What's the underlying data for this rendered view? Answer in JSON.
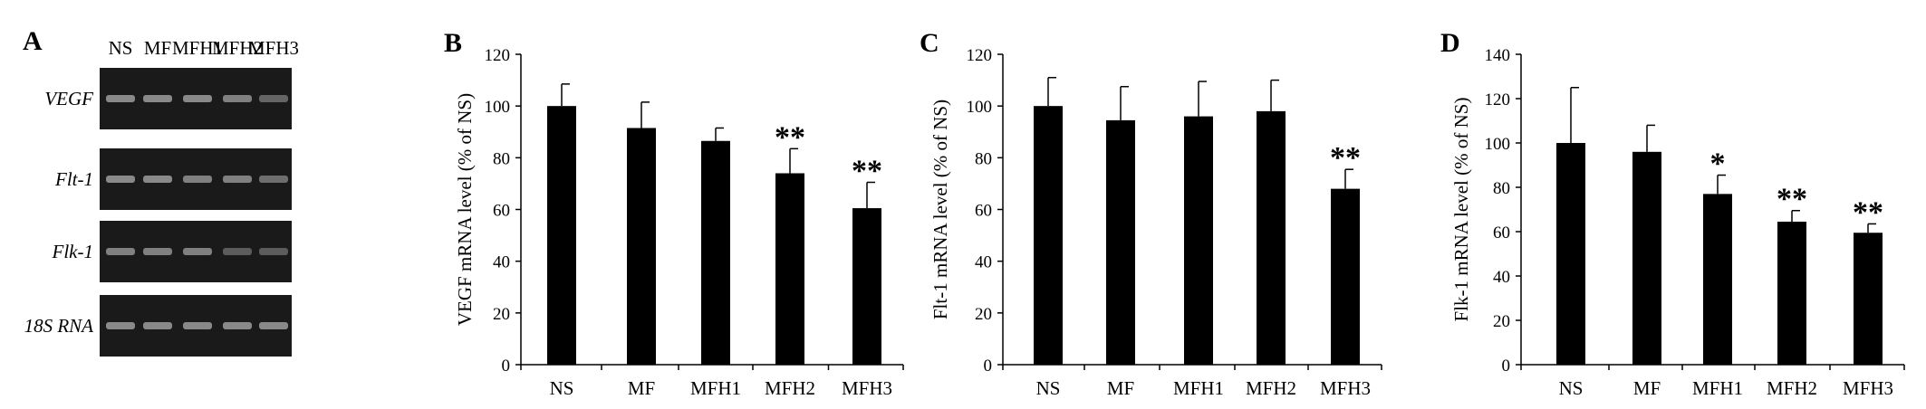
{
  "gel": {
    "panel_letter": "A",
    "lanes": [
      "NS",
      "MF",
      "MFH1",
      "MFH2",
      "MFH3"
    ],
    "rows": [
      {
        "label": "VEGF",
        "intensity": [
          0.55,
          0.55,
          0.55,
          0.5,
          0.35
        ]
      },
      {
        "label": "Flt-1",
        "intensity": [
          0.55,
          0.55,
          0.5,
          0.5,
          0.4
        ]
      },
      {
        "label": "Flk-1",
        "intensity": [
          0.5,
          0.5,
          0.5,
          0.3,
          0.3
        ]
      },
      {
        "label": "18S RNA",
        "intensity": [
          0.55,
          0.55,
          0.55,
          0.55,
          0.55
        ]
      }
    ]
  },
  "chart_data": [
    {
      "panel_letter": "B",
      "type": "bar",
      "categories": [
        "NS",
        "MF",
        "MFH1",
        "MFH2",
        "MFH3"
      ],
      "values": [
        100,
        91.5,
        86.5,
        74,
        60.5
      ],
      "errors": [
        8.5,
        10,
        5,
        9.5,
        10
      ],
      "significance": [
        "",
        "",
        "",
        "**",
        "**"
      ],
      "ylabel": "VEGF mRNA level (% of NS)",
      "ylim": [
        0,
        120
      ],
      "yticks": [
        0,
        20,
        40,
        60,
        80,
        100,
        120
      ],
      "bar_color": "#000000"
    },
    {
      "panel_letter": "C",
      "type": "bar",
      "categories": [
        "NS",
        "MF",
        "MFH1",
        "MFH2",
        "MFH3"
      ],
      "values": [
        100,
        94.5,
        96,
        98,
        68
      ],
      "errors": [
        11,
        13,
        13.5,
        12,
        7.5
      ],
      "significance": [
        "",
        "",
        "",
        "",
        "**"
      ],
      "ylabel": "Flt-1 mRNA level (% of NS)",
      "ylim": [
        0,
        120
      ],
      "yticks": [
        0,
        20,
        40,
        60,
        80,
        100,
        120
      ],
      "bar_color": "#000000"
    },
    {
      "panel_letter": "D",
      "type": "bar",
      "categories": [
        "NS",
        "MF",
        "MFH1",
        "MFH2",
        "MFH3"
      ],
      "values": [
        100,
        96,
        77,
        64.5,
        59.5
      ],
      "errors": [
        25,
        12,
        8.5,
        5,
        4
      ],
      "significance": [
        "",
        "",
        "*",
        "**",
        "**"
      ],
      "ylabel": "Flk-1 mRNA level (% of NS)",
      "ylim": [
        0,
        140
      ],
      "yticks": [
        0,
        20,
        40,
        60,
        80,
        100,
        120,
        140
      ],
      "bar_color": "#000000"
    }
  ]
}
